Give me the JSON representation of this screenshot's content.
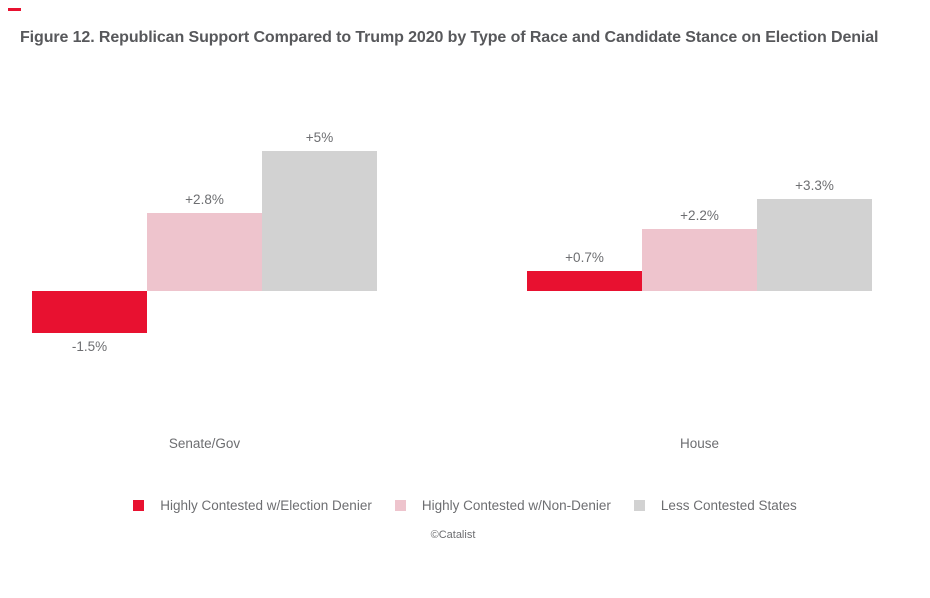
{
  "figure": {
    "title": "Figure 12. Republican Support Compared to Trump 2020 by Type of Race and Candidate Stance on Election Denial",
    "credit": "©Catalist"
  },
  "chart_data": {
    "type": "bar",
    "title": "Figure 12. Republican Support Compared to Trump 2020 by Type of Race and Candidate Stance on Election Denial",
    "xlabel": "",
    "ylabel": "",
    "categories": [
      "Senate/Gov",
      "House"
    ],
    "series": [
      {
        "name": "Highly Contested w/Election Denier",
        "color": "#e81130",
        "values": [
          -1.5,
          0.7
        ],
        "labels": [
          "-1.5%",
          "+0.7%"
        ]
      },
      {
        "name": "Highly Contested w/Non-Denier",
        "color": "#eec4cd",
        "values": [
          2.8,
          2.2
        ],
        "labels": [
          "+2.8%",
          "+2.2%"
        ]
      },
      {
        "name": "Less Contested States",
        "color": "#d2d2d2",
        "values": [
          5,
          3.3
        ],
        "labels": [
          "+5%",
          "+3.3%"
        ]
      }
    ],
    "ylim": [
      -2,
      5.5
    ],
    "grid": false,
    "axis_lines": false,
    "legend_position": "bottom",
    "data_label_color": "#6d6e71"
  },
  "legend": {
    "items": [
      {
        "label": "Highly Contested w/Election Denier",
        "color": "#e81130"
      },
      {
        "label": "Highly Contested w/Non-Denier",
        "color": "#eec4cd"
      },
      {
        "label": "Less Contested States",
        "color": "#d2d2d2"
      }
    ]
  }
}
